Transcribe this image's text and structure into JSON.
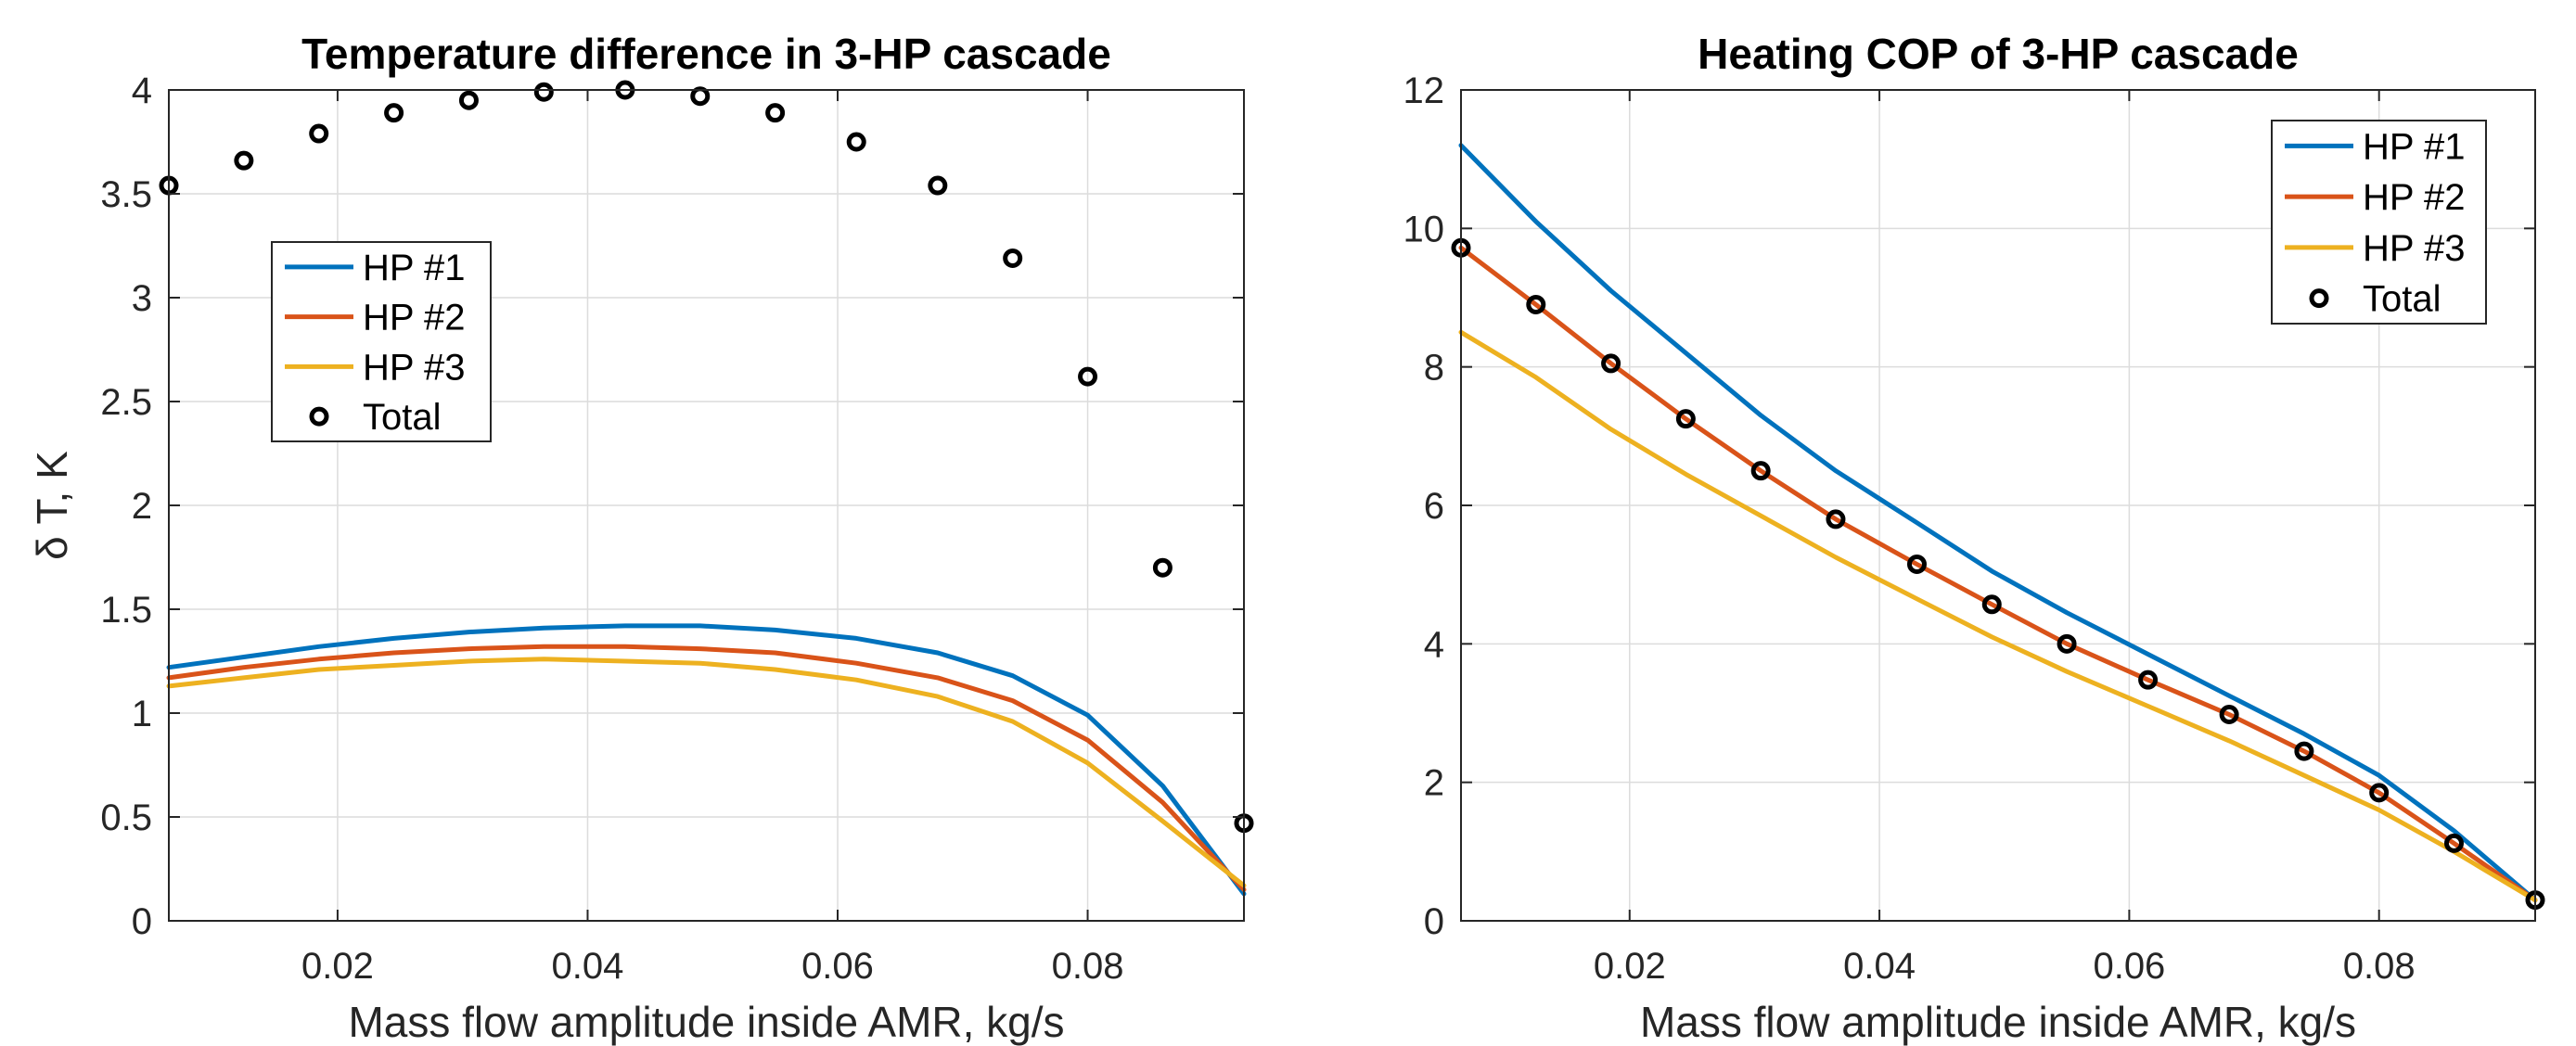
{
  "colors": {
    "HP #1": "#0072bd",
    "HP #2": "#d95319",
    "HP #3": "#edb120",
    "Total": "#000000"
  },
  "chart_data": [
    {
      "type": "line",
      "title": "Temperature difference in 3-HP cascade",
      "xlabel": "Mass flow amplitude inside AMR, kg/s",
      "ylabel": "δ T, K",
      "xlim": [
        0.0065,
        0.0925
      ],
      "ylim": [
        0,
        4
      ],
      "xticks": [
        0.02,
        0.04,
        0.06,
        0.08
      ],
      "xticklabels": [
        "0.02",
        "0.04",
        "0.06",
        "0.08"
      ],
      "yticks": [
        0,
        0.5,
        1,
        1.5,
        2,
        2.5,
        3,
        3.5,
        4
      ],
      "yticklabels": [
        "0",
        "0.5",
        "1",
        "1.5",
        "2",
        "2.5",
        "3",
        "3.5",
        "4"
      ],
      "grid": true,
      "legend_position": "upper-left",
      "x": [
        0.0065,
        0.0125,
        0.0185,
        0.0245,
        0.0305,
        0.0365,
        0.043,
        0.049,
        0.055,
        0.0615,
        0.068,
        0.074,
        0.08,
        0.086,
        0.0925
      ],
      "series": [
        {
          "name": "HP #1",
          "style": "line",
          "values": [
            1.22,
            1.27,
            1.32,
            1.36,
            1.39,
            1.41,
            1.42,
            1.42,
            1.4,
            1.36,
            1.29,
            1.18,
            0.99,
            0.65,
            0.13
          ]
        },
        {
          "name": "HP #2",
          "style": "line",
          "values": [
            1.17,
            1.22,
            1.26,
            1.29,
            1.31,
            1.32,
            1.32,
            1.31,
            1.29,
            1.24,
            1.17,
            1.06,
            0.87,
            0.57,
            0.15
          ]
        },
        {
          "name": "HP #3",
          "style": "line",
          "values": [
            1.13,
            1.17,
            1.21,
            1.23,
            1.25,
            1.26,
            1.25,
            1.24,
            1.21,
            1.16,
            1.08,
            0.96,
            0.76,
            0.48,
            0.17
          ]
        },
        {
          "name": "Total",
          "style": "markers",
          "values": [
            3.54,
            3.66,
            3.79,
            3.89,
            3.95,
            3.99,
            4.0,
            3.97,
            3.89,
            3.75,
            3.54,
            3.19,
            2.62,
            1.7,
            0.47
          ]
        }
      ]
    },
    {
      "type": "line",
      "title": "Heating COP of 3-HP cascade",
      "xlabel": "Mass flow amplitude inside AMR, kg/s",
      "ylabel": "",
      "xlim": [
        0.0065,
        0.0925
      ],
      "ylim": [
        0,
        12
      ],
      "xticks": [
        0.02,
        0.04,
        0.06,
        0.08
      ],
      "xticklabels": [
        "0.02",
        "0.04",
        "0.06",
        "0.08"
      ],
      "yticks": [
        0,
        2,
        4,
        6,
        8,
        10,
        12
      ],
      "yticklabels": [
        "0",
        "2",
        "4",
        "6",
        "8",
        "10",
        "12"
      ],
      "grid": true,
      "legend_position": "upper-right",
      "x": [
        0.0065,
        0.0125,
        0.0185,
        0.0245,
        0.0305,
        0.0365,
        0.043,
        0.049,
        0.055,
        0.0615,
        0.068,
        0.074,
        0.08,
        0.086,
        0.0925
      ],
      "series": [
        {
          "name": "HP #1",
          "style": "line",
          "values": [
            11.2,
            10.1,
            9.1,
            8.2,
            7.3,
            6.5,
            5.75,
            5.05,
            4.45,
            3.85,
            3.25,
            2.7,
            2.1,
            1.3,
            0.3
          ]
        },
        {
          "name": "HP #2",
          "style": "line",
          "values": [
            9.72,
            8.9,
            8.05,
            7.25,
            6.5,
            5.8,
            5.15,
            4.57,
            4.0,
            3.48,
            2.98,
            2.45,
            1.85,
            1.12,
            0.3
          ]
        },
        {
          "name": "HP #3",
          "style": "line",
          "values": [
            8.5,
            7.85,
            7.1,
            6.45,
            5.85,
            5.25,
            4.65,
            4.1,
            3.6,
            3.1,
            2.6,
            2.1,
            1.6,
            1.0,
            0.3
          ]
        },
        {
          "name": "Total",
          "style": "markers",
          "values": [
            9.72,
            8.9,
            8.05,
            7.25,
            6.5,
            5.8,
            5.15,
            4.57,
            4.0,
            3.48,
            2.98,
            2.45,
            1.85,
            1.12,
            0.3
          ]
        }
      ]
    }
  ]
}
